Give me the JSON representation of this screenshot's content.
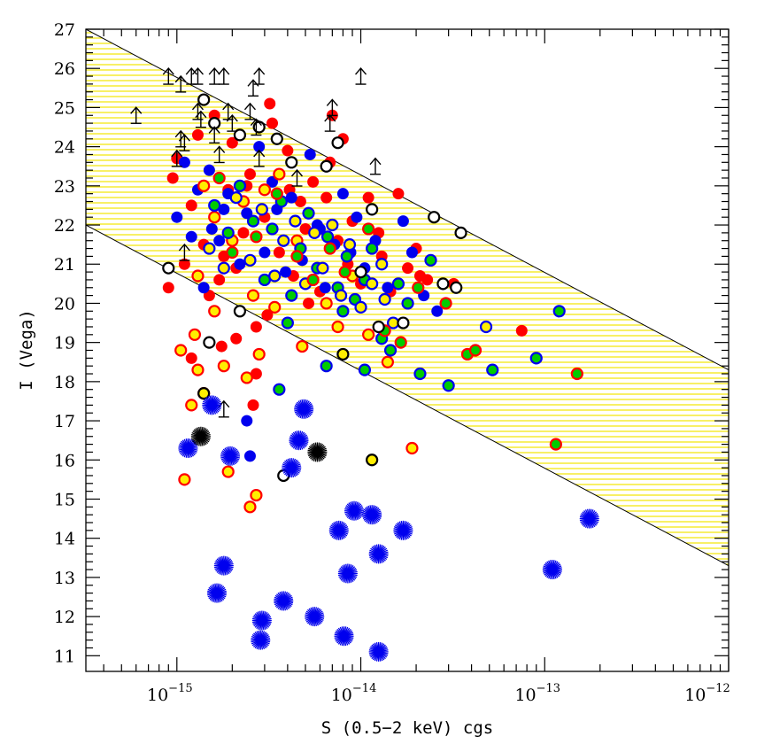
{
  "chart_data": {
    "type": "scatter",
    "title": "",
    "xlabel": "S (0.5−2 keV) cgs",
    "ylabel": "I (Vega)",
    "xscale": "log",
    "xlim": [
      3.2e-16,
      1e-12
    ],
    "ylim": [
      10.6,
      27
    ],
    "x_tick_labels": [
      {
        "base": "10",
        "exp": "−15",
        "value": 1e-15
      },
      {
        "base": "10",
        "exp": "−14",
        "value": 1e-14
      },
      {
        "base": "10",
        "exp": "−13",
        "value": 1e-13
      },
      {
        "base": "10",
        "exp": "−12",
        "value": 1e-12
      }
    ],
    "y_ticks": [
      "11",
      "12",
      "13",
      "14",
      "15",
      "16",
      "17",
      "18",
      "19",
      "20",
      "21",
      "22",
      "23",
      "24",
      "25",
      "26",
      "27"
    ],
    "band": {
      "description": "hatched region between two lines",
      "upper_line": [
        [
          3.2e-16,
          27.0
        ],
        [
          1e-12,
          18.3
        ]
      ],
      "lower_line": [
        [
          3.2e-16,
          22.0
        ],
        [
          1e-12,
          13.3
        ]
      ],
      "fill_color": "#f2e600"
    },
    "colors": {
      "red": "#ff0000",
      "blue": "#0000ee",
      "green": "#00cc00",
      "yellow": "#ffee00",
      "black": "#000000"
    },
    "series": [
      {
        "name": "red filled",
        "marker": "circle",
        "fill": "#ff0000",
        "edge": "#ff0000",
        "points": [
          [
            9e-16,
            20.4
          ],
          [
            1e-15,
            23.7
          ],
          [
            9.5e-16,
            23.2
          ],
          [
            1.1e-15,
            21.0
          ],
          [
            1.2e-15,
            22.5
          ],
          [
            1.3e-15,
            24.3
          ],
          [
            1.4e-15,
            21.5
          ],
          [
            1.6e-15,
            24.8
          ],
          [
            1.7e-15,
            20.6
          ],
          [
            1.9e-15,
            22.9
          ],
          [
            2e-15,
            24.1
          ],
          [
            2.1e-15,
            20.9
          ],
          [
            2.3e-15,
            21.8
          ],
          [
            2.5e-15,
            23.3
          ],
          [
            2.7e-15,
            19.4
          ],
          [
            3e-15,
            22.2
          ],
          [
            3.2e-15,
            25.1
          ],
          [
            3.3e-15,
            24.6
          ],
          [
            3.6e-15,
            21.3
          ],
          [
            4e-15,
            23.9
          ],
          [
            4.3e-15,
            20.7
          ],
          [
            4.7e-15,
            22.6
          ],
          [
            5e-15,
            21.9
          ],
          [
            5.5e-15,
            23.1
          ],
          [
            6e-15,
            20.3
          ],
          [
            6.5e-15,
            22.7
          ],
          [
            7e-15,
            24.8
          ],
          [
            7.5e-15,
            21.6
          ],
          [
            8e-15,
            24.2
          ],
          [
            9e-15,
            22.1
          ],
          [
            1e-14,
            20.5
          ],
          [
            1.1e-14,
            22.7
          ],
          [
            1.3e-14,
            21.2
          ],
          [
            1.6e-14,
            22.8
          ],
          [
            1.8e-14,
            20.9
          ],
          [
            2e-14,
            21.4
          ],
          [
            2.3e-14,
            20.6
          ],
          [
            3.2e-14,
            20.5
          ],
          [
            7.5e-14,
            19.3
          ],
          [
            1.75e-15,
            18.9
          ],
          [
            2.6e-15,
            17.4
          ],
          [
            2.7e-15,
            18.2
          ],
          [
            1.2e-15,
            18.6
          ],
          [
            2.1e-15,
            19.1
          ],
          [
            1.5e-15,
            20.2
          ],
          [
            3.1e-15,
            19.7
          ],
          [
            2.4e-15,
            23.0
          ],
          [
            1.8e-15,
            21.2
          ],
          [
            4.1e-15,
            22.9
          ],
          [
            5.2e-15,
            20.0
          ],
          [
            6.8e-15,
            23.6
          ],
          [
            8.5e-15,
            21.0
          ],
          [
            1.25e-14,
            21.8
          ],
          [
            1.45e-14,
            20.3
          ],
          [
            2.1e-14,
            20.7
          ]
        ]
      },
      {
        "name": "blue filled",
        "marker": "circle",
        "fill": "#0000ee",
        "edge": "#0000ee",
        "points": [
          [
            1e-15,
            22.2
          ],
          [
            1.1e-15,
            23.6
          ],
          [
            1.2e-15,
            21.7
          ],
          [
            1.3e-15,
            22.9
          ],
          [
            1.4e-15,
            20.4
          ],
          [
            1.5e-15,
            23.4
          ],
          [
            1.7e-15,
            21.6
          ],
          [
            1.9e-15,
            22.8
          ],
          [
            2.2e-15,
            21.0
          ],
          [
            2.4e-15,
            22.3
          ],
          [
            2.8e-15,
            24.0
          ],
          [
            3e-15,
            21.3
          ],
          [
            3.5e-15,
            22.4
          ],
          [
            3.9e-15,
            20.8
          ],
          [
            4.2e-15,
            22.7
          ],
          [
            4.8e-15,
            21.1
          ],
          [
            5.3e-15,
            23.8
          ],
          [
            5.8e-15,
            22.0
          ],
          [
            6.4e-15,
            20.4
          ],
          [
            7.2e-15,
            21.5
          ],
          [
            8e-15,
            22.8
          ],
          [
            8.8e-15,
            21.3
          ],
          [
            9.5e-15,
            22.2
          ],
          [
            1.05e-14,
            20.9
          ],
          [
            1.2e-14,
            21.6
          ],
          [
            1.4e-14,
            20.4
          ],
          [
            1.7e-14,
            22.1
          ],
          [
            1.9e-14,
            21.3
          ],
          [
            2.2e-14,
            20.2
          ],
          [
            2.6e-14,
            19.8
          ],
          [
            2.4e-15,
            17.0
          ],
          [
            2.5e-15,
            16.1
          ],
          [
            1.8e-15,
            22.4
          ],
          [
            1.55e-15,
            21.9
          ],
          [
            3.3e-15,
            23.1
          ],
          [
            6e-15,
            21.9
          ]
        ]
      },
      {
        "name": "yellow filled, red edge",
        "marker": "circle",
        "fill": "#ffee00",
        "edge": "#ff0000",
        "points": [
          [
            1.05e-15,
            18.8
          ],
          [
            1.2e-15,
            17.4
          ],
          [
            1.3e-15,
            18.3
          ],
          [
            1.4e-15,
            17.7
          ],
          [
            1.8e-15,
            18.4
          ],
          [
            2.4e-15,
            18.1
          ],
          [
            1.1e-15,
            15.5
          ],
          [
            1.9e-15,
            15.7
          ],
          [
            2.5e-15,
            14.8
          ],
          [
            2.7e-15,
            15.1
          ],
          [
            1.9e-14,
            16.3
          ],
          [
            1.25e-15,
            19.2
          ],
          [
            1.3e-15,
            20.7
          ],
          [
            1.6e-15,
            19.8
          ],
          [
            2e-15,
            21.6
          ],
          [
            2.6e-15,
            20.2
          ],
          [
            3.4e-15,
            19.9
          ],
          [
            4.8e-15,
            18.9
          ],
          [
            7.5e-15,
            19.4
          ],
          [
            1.1e-14,
            19.2
          ],
          [
            1.4e-14,
            18.5
          ],
          [
            3e-15,
            22.9
          ],
          [
            4.5e-15,
            21.6
          ],
          [
            6.5e-15,
            20.0
          ],
          [
            9e-15,
            20.7
          ],
          [
            1.6e-15,
            22.2
          ],
          [
            2.3e-15,
            22.6
          ],
          [
            3.6e-15,
            23.3
          ],
          [
            2.8e-15,
            18.7
          ],
          [
            1.4e-15,
            23.0
          ]
        ]
      },
      {
        "name": "green filled, blue edge",
        "marker": "circle",
        "fill": "#00cc00",
        "edge": "#0000ee",
        "points": [
          [
            1.6e-15,
            22.5
          ],
          [
            1.9e-15,
            21.8
          ],
          [
            2.2e-15,
            23.0
          ],
          [
            2.6e-15,
            22.1
          ],
          [
            3e-15,
            20.6
          ],
          [
            3.3e-15,
            21.9
          ],
          [
            3.7e-15,
            22.6
          ],
          [
            4.2e-15,
            20.2
          ],
          [
            4.7e-15,
            21.4
          ],
          [
            5.2e-15,
            22.3
          ],
          [
            5.8e-15,
            20.9
          ],
          [
            6.6e-15,
            21.7
          ],
          [
            7.5e-15,
            20.4
          ],
          [
            8.4e-15,
            21.2
          ],
          [
            9.3e-15,
            20.1
          ],
          [
            1.05e-14,
            20.6
          ],
          [
            1.15e-14,
            21.4
          ],
          [
            1.3e-14,
            19.1
          ],
          [
            1.45e-14,
            18.8
          ],
          [
            1.6e-14,
            20.5
          ],
          [
            1.8e-14,
            20.0
          ],
          [
            2.1e-14,
            18.2
          ],
          [
            2.4e-14,
            21.1
          ],
          [
            3e-14,
            17.9
          ],
          [
            5.2e-14,
            18.3
          ],
          [
            9e-14,
            18.6
          ],
          [
            1.2e-13,
            19.8
          ],
          [
            6.5e-15,
            18.4
          ],
          [
            1.05e-14,
            18.3
          ],
          [
            3.6e-15,
            17.8
          ],
          [
            4e-15,
            19.5
          ],
          [
            8e-15,
            19.8
          ]
        ]
      },
      {
        "name": "yellow filled, blue edge",
        "marker": "circle",
        "fill": "#ffee00",
        "edge": "#0000ee",
        "points": [
          [
            1.5e-15,
            21.4
          ],
          [
            1.8e-15,
            20.9
          ],
          [
            2.1e-15,
            22.7
          ],
          [
            2.5e-15,
            21.1
          ],
          [
            2.9e-15,
            22.4
          ],
          [
            3.4e-15,
            20.7
          ],
          [
            3.8e-15,
            21.6
          ],
          [
            4.4e-15,
            22.1
          ],
          [
            5e-15,
            20.5
          ],
          [
            5.6e-15,
            21.8
          ],
          [
            6.2e-15,
            20.9
          ],
          [
            7e-15,
            22.0
          ],
          [
            7.8e-15,
            20.2
          ],
          [
            8.7e-15,
            21.5
          ],
          [
            1e-14,
            19.9
          ],
          [
            1.15e-14,
            20.5
          ],
          [
            1.3e-14,
            21.0
          ],
          [
            1.5e-14,
            19.5
          ],
          [
            4.8e-14,
            19.4
          ],
          [
            1.35e-14,
            20.1
          ]
        ]
      },
      {
        "name": "green filled, red edge",
        "marker": "circle",
        "fill": "#00cc00",
        "edge": "#ff0000",
        "points": [
          [
            1.7e-15,
            23.2
          ],
          [
            2e-15,
            21.3
          ],
          [
            2.7e-15,
            21.7
          ],
          [
            3.5e-15,
            22.8
          ],
          [
            4.5e-15,
            21.2
          ],
          [
            5.5e-15,
            20.6
          ],
          [
            6.8e-15,
            21.4
          ],
          [
            8.2e-15,
            20.8
          ],
          [
            1.1e-14,
            21.9
          ],
          [
            1.35e-14,
            19.3
          ],
          [
            1.65e-14,
            19.0
          ],
          [
            2.05e-14,
            20.4
          ],
          [
            2.9e-14,
            20.0
          ],
          [
            3.8e-14,
            18.7
          ],
          [
            4.2e-14,
            18.8
          ],
          [
            1.15e-13,
            16.4
          ],
          [
            1.5e-13,
            18.2
          ]
        ]
      },
      {
        "name": "open circles",
        "marker": "circle",
        "fill": "#ffffff",
        "edge": "#000000",
        "points": [
          [
            9e-16,
            20.9
          ],
          [
            1.4e-15,
            25.2
          ],
          [
            1.6e-15,
            24.6
          ],
          [
            2.2e-15,
            24.3
          ],
          [
            2.2e-15,
            19.8
          ],
          [
            2.8e-15,
            24.5
          ],
          [
            3.5e-15,
            24.2
          ],
          [
            4.2e-15,
            23.6
          ],
          [
            6.5e-15,
            23.5
          ],
          [
            7.5e-15,
            24.1
          ],
          [
            1.15e-14,
            22.4
          ],
          [
            1e-14,
            20.8
          ],
          [
            1.25e-14,
            19.4
          ],
          [
            1.5e-15,
            19.0
          ],
          [
            3.8e-15,
            15.6
          ],
          [
            2.5e-14,
            22.2
          ],
          [
            3.5e-14,
            21.8
          ],
          [
            3.3e-14,
            20.4
          ],
          [
            2.8e-14,
            20.5
          ],
          [
            1.7e-14,
            19.5
          ]
        ]
      },
      {
        "name": "yellow filled, black edge",
        "marker": "circle",
        "fill": "#ffee00",
        "edge": "#000000",
        "points": [
          [
            1.4e-15,
            17.7
          ],
          [
            1.15e-14,
            16.0
          ],
          [
            8e-15,
            18.7
          ]
        ]
      },
      {
        "name": "upper limits",
        "marker": "arrow_up",
        "fill": "none",
        "edge": "#000000",
        "points": [
          [
            6e-16,
            24.8
          ],
          [
            9e-16,
            25.8
          ],
          [
            1.05e-15,
            25.6
          ],
          [
            1.2e-15,
            25.8
          ],
          [
            1.3e-15,
            25.8
          ],
          [
            1.6e-15,
            25.8
          ],
          [
            1.8e-15,
            25.8
          ],
          [
            2.8e-15,
            25.8
          ],
          [
            1e-14,
            25.8
          ],
          [
            1.05e-15,
            24.2
          ],
          [
            1.1e-15,
            24.1
          ],
          [
            1.3e-15,
            24.9
          ],
          [
            1.35e-15,
            24.7
          ],
          [
            1.6e-15,
            24.3
          ],
          [
            1.7e-15,
            23.8
          ],
          [
            1.9e-15,
            24.9
          ],
          [
            2e-15,
            24.6
          ],
          [
            2.5e-15,
            24.9
          ],
          [
            2.7e-15,
            24.5
          ],
          [
            2.6e-15,
            25.5
          ],
          [
            7e-15,
            25.0
          ],
          [
            6.8e-15,
            24.6
          ],
          [
            1.2e-14,
            23.5
          ],
          [
            1e-15,
            23.7
          ],
          [
            1.1e-15,
            21.3
          ],
          [
            1.8e-15,
            17.3
          ],
          [
            2.8e-15,
            23.7
          ],
          [
            4.5e-15,
            23.2
          ]
        ]
      },
      {
        "name": "blue stars",
        "marker": "star",
        "fill": "#0000ee",
        "edge": "#0000ee",
        "points": [
          [
            1.15e-15,
            16.3
          ],
          [
            1.55e-15,
            17.4
          ],
          [
            1.95e-15,
            16.1
          ],
          [
            1.8e-15,
            13.3
          ],
          [
            1.65e-15,
            12.6
          ],
          [
            2.9e-15,
            11.9
          ],
          [
            2.85e-15,
            11.4
          ],
          [
            3.8e-15,
            12.4
          ],
          [
            4.2e-15,
            15.8
          ],
          [
            4.6e-15,
            16.5
          ],
          [
            4.9e-15,
            17.3
          ],
          [
            5.6e-15,
            12.0
          ],
          [
            7.6e-15,
            14.2
          ],
          [
            8.5e-15,
            13.1
          ],
          [
            9.2e-15,
            14.7
          ],
          [
            8.1e-15,
            11.5
          ],
          [
            1.15e-14,
            14.6
          ],
          [
            1.25e-14,
            13.6
          ],
          [
            1.25e-14,
            11.1
          ],
          [
            1.7e-14,
            14.2
          ],
          [
            1.1e-13,
            13.2
          ],
          [
            1.75e-13,
            14.5
          ]
        ]
      },
      {
        "name": "black stars",
        "marker": "star",
        "fill": "#000000",
        "edge": "#000000",
        "points": [
          [
            1.35e-15,
            16.6
          ],
          [
            5.8e-15,
            16.2
          ]
        ]
      }
    ]
  }
}
